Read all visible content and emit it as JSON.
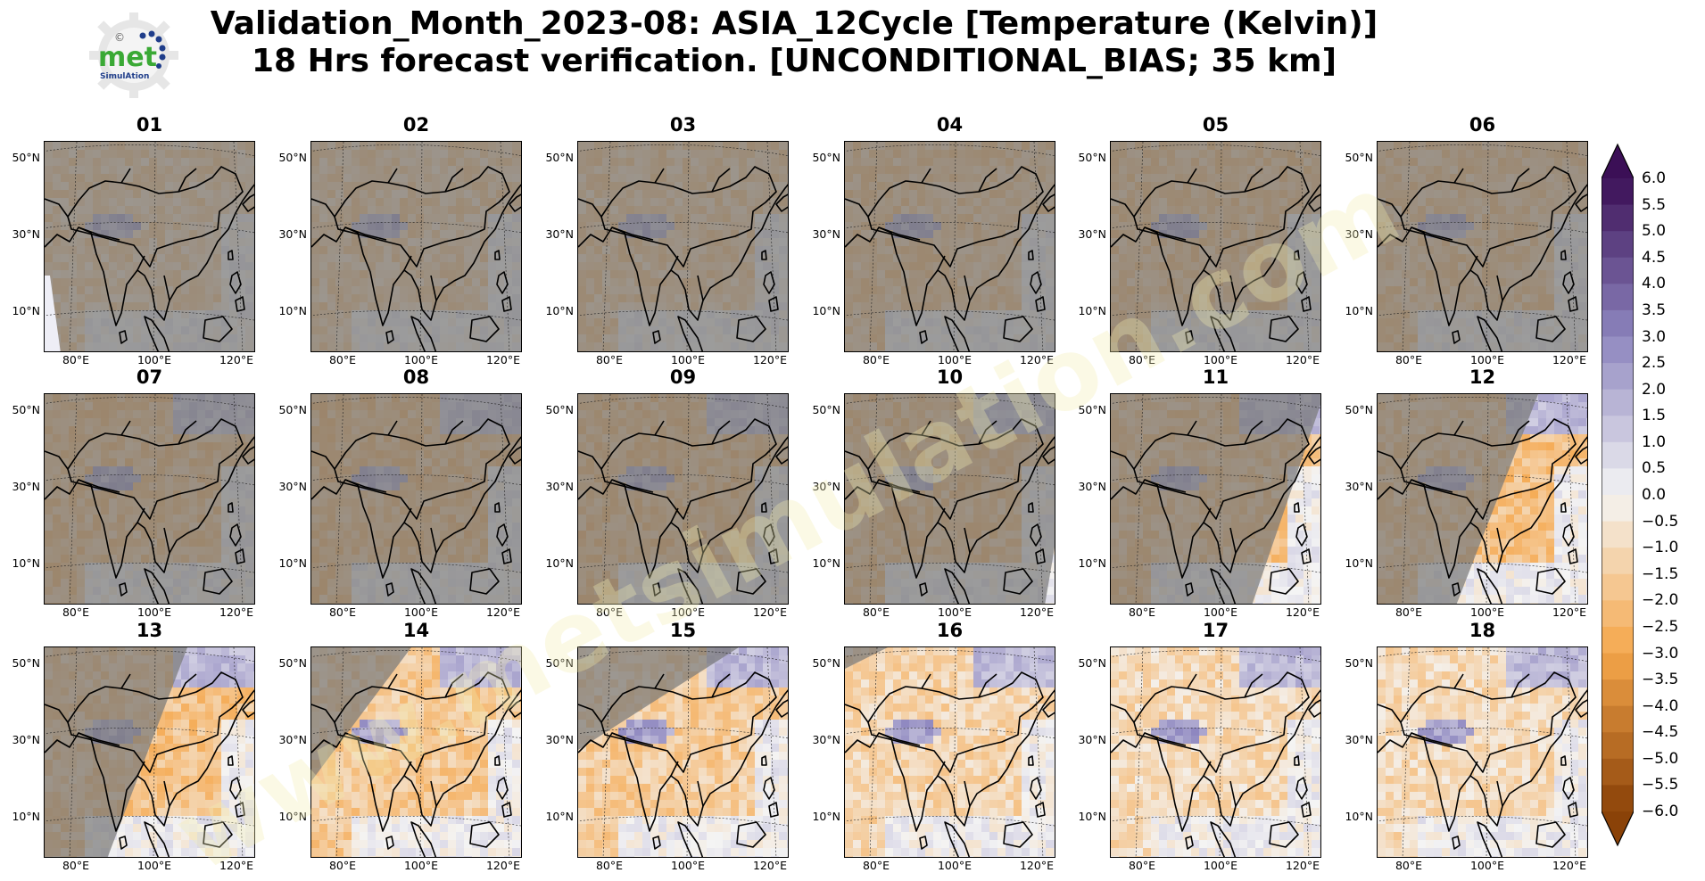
{
  "title": {
    "line1": "Validation_Month_2023-08: ASIA_12Cycle [Temperature (Kelvin)]",
    "line2": "18 Hrs forecast verification. [UNCONDITIONAL_BIAS; 35 km]"
  },
  "logo": {
    "word": "met",
    "sub": "SimulAtion",
    "mark": "©"
  },
  "watermark": "www.metsimulation.com",
  "axes": {
    "lat_labels": [
      "50°N",
      "30°N",
      "10°N"
    ],
    "lon_labels": [
      "80°E",
      "100°E",
      "120°E"
    ]
  },
  "panels": [
    {
      "label": "01",
      "bias": -1.6,
      "gap": "left"
    },
    {
      "label": "02",
      "bias": -1.7,
      "gap": "none"
    },
    {
      "label": "03",
      "bias": -1.8,
      "gap": "none"
    },
    {
      "label": "04",
      "bias": -2.0,
      "gap": "none"
    },
    {
      "label": "05",
      "bias": -2.1,
      "gap": "none"
    },
    {
      "label": "06",
      "bias": -2.0,
      "gap": "none"
    },
    {
      "label": "07",
      "bias": -2.2,
      "gap": "none"
    },
    {
      "label": "08",
      "bias": -2.3,
      "gap": "none"
    },
    {
      "label": "09",
      "bias": -2.3,
      "gap": "none"
    },
    {
      "label": "10",
      "bias": -2.2,
      "gap": "right-small"
    },
    {
      "label": "11",
      "bias": -2.1,
      "gap": "right"
    },
    {
      "label": "12",
      "bias": -2.0,
      "gap": "right-large"
    },
    {
      "label": "13",
      "bias": -1.9,
      "gap": "covered-left"
    },
    {
      "label": "14",
      "bias": -1.6,
      "gap": "covered-corner"
    },
    {
      "label": "15",
      "bias": -1.5,
      "gap": "covered-top"
    },
    {
      "label": "16",
      "bias": -1.2,
      "gap": "covered-tip"
    },
    {
      "label": "17",
      "bias": -1.0,
      "gap": "full"
    },
    {
      "label": "18",
      "bias": -1.0,
      "gap": "full"
    }
  ],
  "colorbar": {
    "ticks": [
      "6.0",
      "5.5",
      "5.0",
      "4.5",
      "4.0",
      "3.5",
      "3.0",
      "2.5",
      "2.0",
      "1.5",
      "1.0",
      "0.5",
      "0.0",
      "−0.5",
      "−1.0",
      "−1.5",
      "−2.0",
      "−2.5",
      "−3.0",
      "−3.5",
      "−4.0",
      "−4.5",
      "−5.0",
      "−5.5",
      "−6.0"
    ],
    "min": -6.0,
    "max": 6.0,
    "step": 0.5,
    "extend": "both",
    "colors": {
      "pos_max": "#3b0f56",
      "pos_mid": "#8d86bf",
      "near_zero": "#f4f4f4",
      "neg_mid": "#f5a64a",
      "neg_max": "#8a4208",
      "missing": "#7a7a7a"
    }
  }
}
